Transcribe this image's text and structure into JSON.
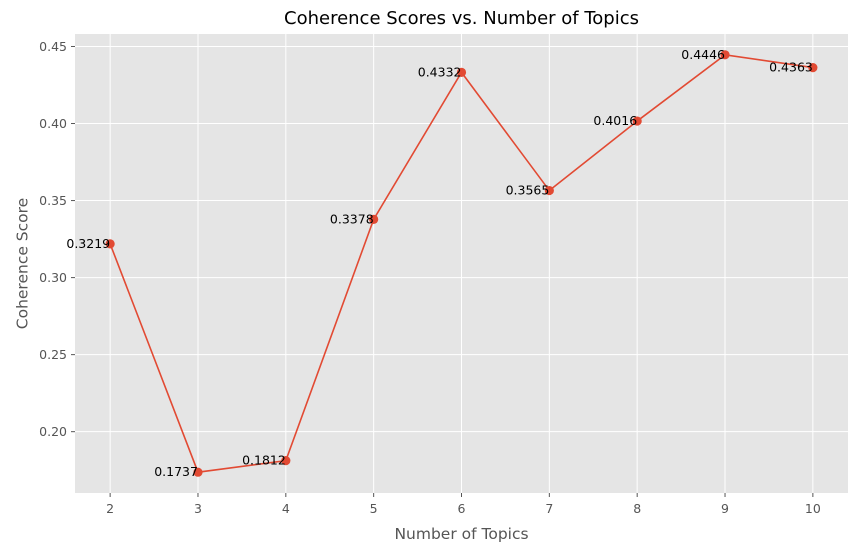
{
  "chart_data": {
    "type": "line",
    "title": "Coherence Scores vs. Number of Topics",
    "xlabel": "Number of Topics",
    "ylabel": "Coherence Score",
    "x": [
      2,
      3,
      4,
      5,
      6,
      7,
      8,
      9,
      10
    ],
    "x_tick_labels": [
      "2",
      "3",
      "4",
      "5",
      "6",
      "7",
      "8",
      "9",
      "10"
    ],
    "y_ticks": [
      0.2,
      0.25,
      0.3,
      0.35,
      0.4,
      0.45
    ],
    "y_tick_labels": [
      "0.20",
      "0.25",
      "0.30",
      "0.35",
      "0.40",
      "0.45"
    ],
    "xlim": [
      1.6,
      10.4
    ],
    "ylim": [
      0.1602,
      0.4581
    ],
    "grid": true,
    "series": [
      {
        "values": [
          0.3219,
          0.1737,
          0.1812,
          0.3378,
          0.4332,
          0.3565,
          0.4016,
          0.4446,
          0.4363
        ],
        "data_labels": [
          "0.3219",
          "0.1737",
          "0.1812",
          "0.3378",
          "0.4332",
          "0.3565",
          "0.4016",
          "0.4446",
          "0.4363"
        ],
        "color": "#E24A33",
        "marker": "circle"
      }
    ],
    "background_color": "#E5E5E5",
    "grid_color": "#FFFFFF"
  }
}
